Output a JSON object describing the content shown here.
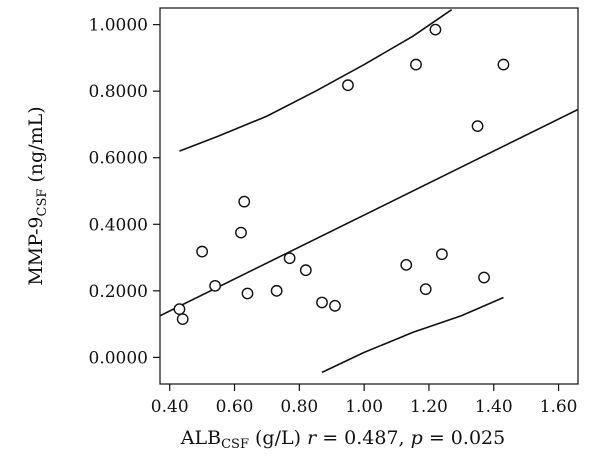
{
  "chart_data": {
    "type": "scatter",
    "title": "",
    "xlabel": {
      "main": "ALB",
      "sub": "CSF",
      "rest": " (g/L) ",
      "r_symbol": "r",
      "r_text": " = 0.487, ",
      "p_symbol": "p",
      "p_text": " = 0.025"
    },
    "ylabel": {
      "main": "MMP-9",
      "sub": "CSF",
      "rest": " (ng/mL)"
    },
    "xlim": [
      0.37,
      1.66
    ],
    "ylim": [
      -0.08,
      1.05
    ],
    "xticks": [
      "0.40",
      "0.60",
      "0.80",
      "1.00",
      "1.20",
      "1.40",
      "1.60"
    ],
    "yticks": [
      "0.0000",
      "0.2000",
      "0.4000",
      "0.6000",
      "0.8000",
      "1.0000"
    ],
    "grid": false,
    "points": [
      {
        "x": 0.43,
        "y": 0.145
      },
      {
        "x": 0.44,
        "y": 0.115
      },
      {
        "x": 0.5,
        "y": 0.318
      },
      {
        "x": 0.54,
        "y": 0.215
      },
      {
        "x": 0.62,
        "y": 0.375
      },
      {
        "x": 0.63,
        "y": 0.468
      },
      {
        "x": 0.64,
        "y": 0.192
      },
      {
        "x": 0.73,
        "y": 0.2
      },
      {
        "x": 0.77,
        "y": 0.298
      },
      {
        "x": 0.82,
        "y": 0.262
      },
      {
        "x": 0.87,
        "y": 0.165
      },
      {
        "x": 0.91,
        "y": 0.155
      },
      {
        "x": 0.95,
        "y": 0.818
      },
      {
        "x": 1.13,
        "y": 0.278
      },
      {
        "x": 1.16,
        "y": 0.88
      },
      {
        "x": 1.19,
        "y": 0.205
      },
      {
        "x": 1.22,
        "y": 0.985
      },
      {
        "x": 1.24,
        "y": 0.31
      },
      {
        "x": 1.35,
        "y": 0.695
      },
      {
        "x": 1.37,
        "y": 0.24
      },
      {
        "x": 1.43,
        "y": 0.88
      }
    ],
    "fit_line": {
      "x": [
        0.37,
        1.66
      ],
      "y": [
        0.125,
        0.745
      ]
    },
    "upper_band": {
      "x": [
        0.43,
        0.55,
        0.7,
        0.85,
        1.0,
        1.15,
        1.27
      ],
      "y": [
        0.62,
        0.665,
        0.725,
        0.8,
        0.88,
        0.965,
        1.045
      ]
    },
    "lower_band": {
      "x": [
        0.87,
        1.0,
        1.15,
        1.3,
        1.43
      ],
      "y": [
        -0.045,
        0.015,
        0.075,
        0.125,
        0.18
      ]
    }
  }
}
